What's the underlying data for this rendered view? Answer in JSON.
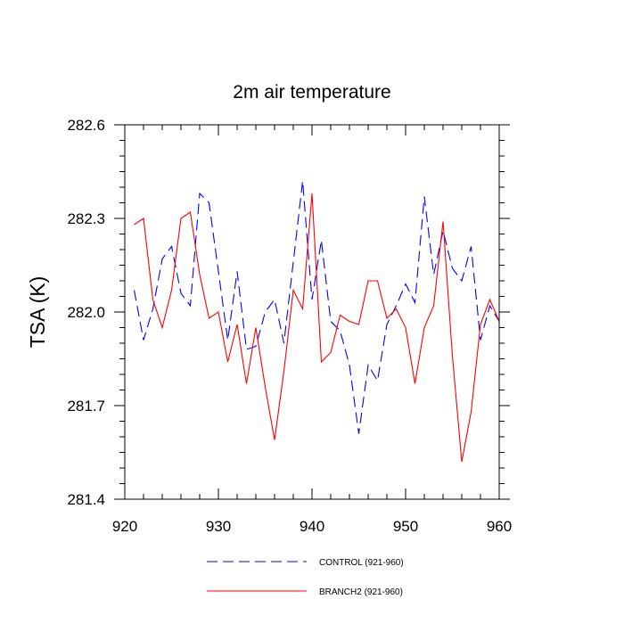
{
  "chart_data": {
    "type": "line",
    "title": "2m air temperature",
    "xlabel": "",
    "ylabel": "TSA  (K)",
    "xlim": [
      920,
      960
    ],
    "ylim": [
      281.4,
      282.6
    ],
    "x_ticks": [
      920,
      930,
      940,
      950,
      960
    ],
    "y_ticks": [
      281.4,
      281.7,
      282.0,
      282.3,
      282.6
    ],
    "x_tick_labels": [
      "920",
      "930",
      "940",
      "950",
      "960"
    ],
    "y_tick_labels": [
      "281.4",
      "281.7",
      "282.0",
      "282.3",
      "282.6"
    ],
    "grid": false,
    "legend_position": "bottom",
    "x": [
      921,
      922,
      923,
      924,
      925,
      926,
      927,
      928,
      929,
      930,
      931,
      932,
      933,
      934,
      935,
      936,
      937,
      938,
      939,
      940,
      941,
      942,
      943,
      944,
      945,
      946,
      947,
      948,
      949,
      950,
      951,
      952,
      953,
      954,
      955,
      956,
      957,
      958,
      959,
      960
    ],
    "series": [
      {
        "name": "CONTROL (921-960)",
        "color": "#0000ff",
        "dash": "dashed",
        "values": [
          282.07,
          281.91,
          282.01,
          282.17,
          282.21,
          282.06,
          282.02,
          282.38,
          282.35,
          282.13,
          281.91,
          282.13,
          281.88,
          281.89,
          282.0,
          282.04,
          281.9,
          282.16,
          282.42,
          282.04,
          282.23,
          281.97,
          281.94,
          281.83,
          281.61,
          281.83,
          281.78,
          281.96,
          282.02,
          282.09,
          282.03,
          282.37,
          282.12,
          282.26,
          282.14,
          282.1,
          282.21,
          281.91,
          282.02,
          281.97
        ]
      },
      {
        "name": "BRANCH2 (921-960)",
        "color": "#ff0000",
        "dash": "solid",
        "values": [
          282.28,
          282.3,
          282.04,
          281.95,
          282.07,
          282.3,
          282.32,
          282.12,
          281.98,
          282.0,
          281.84,
          281.96,
          281.77,
          281.95,
          281.76,
          281.59,
          281.81,
          282.07,
          282.01,
          282.38,
          281.84,
          281.87,
          281.99,
          281.97,
          281.96,
          282.1,
          282.1,
          281.98,
          282.01,
          281.95,
          281.77,
          281.95,
          282.02,
          282.29,
          281.86,
          281.52,
          281.68,
          281.96,
          282.04,
          281.97
        ]
      }
    ]
  }
}
